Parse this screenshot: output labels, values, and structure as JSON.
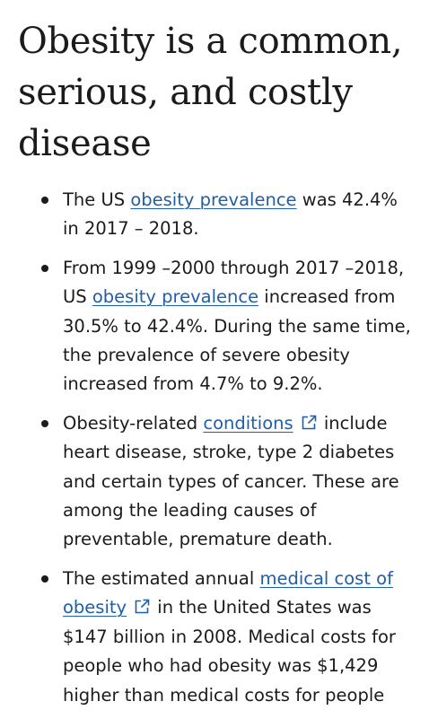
{
  "heading": "Obesity is a common, serious, and costly disease",
  "items": [
    {
      "t1": "The US ",
      "link": "obesity prevalence",
      "t2": " was 42.4% in 2017 – 2018."
    },
    {
      "t1": "From 1999 –2000 through 2017 –2018, US ",
      "link": "obesity prevalence",
      "t2": " increased from 30.5% to 42.4%. During the same time, the prevalence of severe obesity increased from 4.7% to 9.2%."
    },
    {
      "t1": "Obesity-related ",
      "link": "conditions",
      "t2": " include heart disease, stroke, type 2 diabetes and certain types of cancer. These are among the leading causes of preventable, premature death."
    },
    {
      "t1": "The estimated annual ",
      "link": "medical cost of obesity",
      "t2": " in the United States was $147 billion in 2008. Medical costs for people who had obesity was $1,429 higher than medical costs for people"
    }
  ],
  "icons": {
    "external_link": "external-link-icon"
  },
  "colors": {
    "text": "#1b1b1b",
    "link": "#1f5ea8",
    "background": "#ffffff"
  }
}
